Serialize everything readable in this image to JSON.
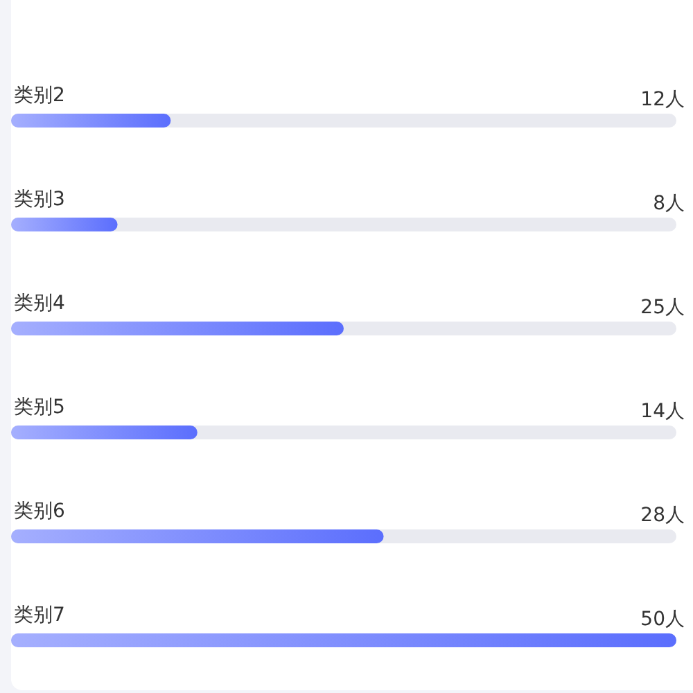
{
  "chart_data": {
    "type": "bar",
    "orientation": "horizontal",
    "categories": [
      "类别2",
      "类别3",
      "类别4",
      "类别5",
      "类别6",
      "类别7"
    ],
    "values": [
      12,
      8,
      25,
      14,
      28,
      50
    ],
    "value_labels": [
      "12人",
      "8人",
      "25人",
      "14人",
      "28人",
      "50人"
    ],
    "color": "#5b6efd",
    "xlim": [
      0,
      50
    ]
  }
}
